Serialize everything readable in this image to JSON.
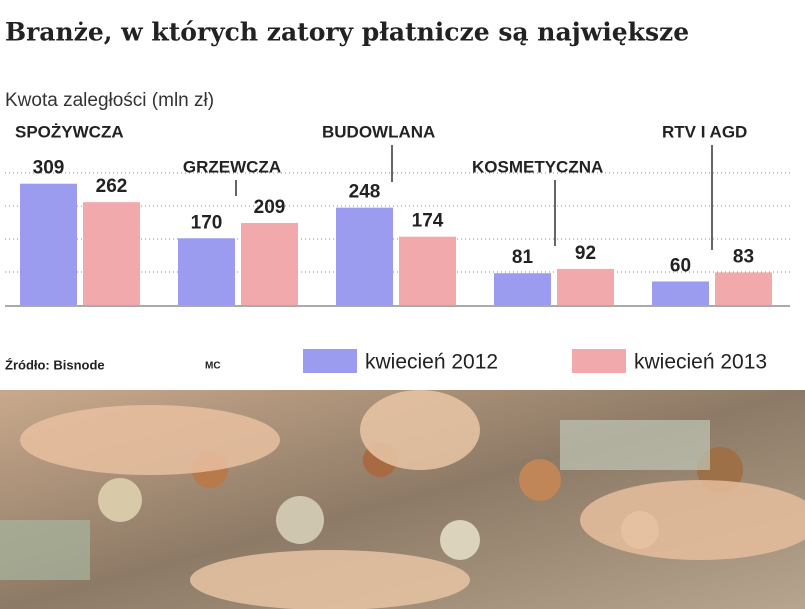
{
  "chart_data": {
    "type": "bar",
    "title": "Branże, w których zatory płatnicze są największe",
    "y_axis_label": "Kwota zaległości (mln zł)",
    "source": "Źródło: Bisnode",
    "author": "MC",
    "categories": [
      "SPOŻYWCZA",
      "GRZEWCZA",
      "BUDOWLANA",
      "KOSMETYCZNA",
      "RTV I AGD"
    ],
    "series": [
      {
        "name": "kwiecień 2012",
        "color": "#9b9bf0",
        "values": [
          309,
          170,
          248,
          81,
          60
        ]
      },
      {
        "name": "kwiecień 2013",
        "color": "#f2a9ac",
        "values": [
          262,
          209,
          174,
          92,
          83
        ]
      }
    ],
    "ylim": [
      0,
      400
    ],
    "legend": "bottom"
  }
}
